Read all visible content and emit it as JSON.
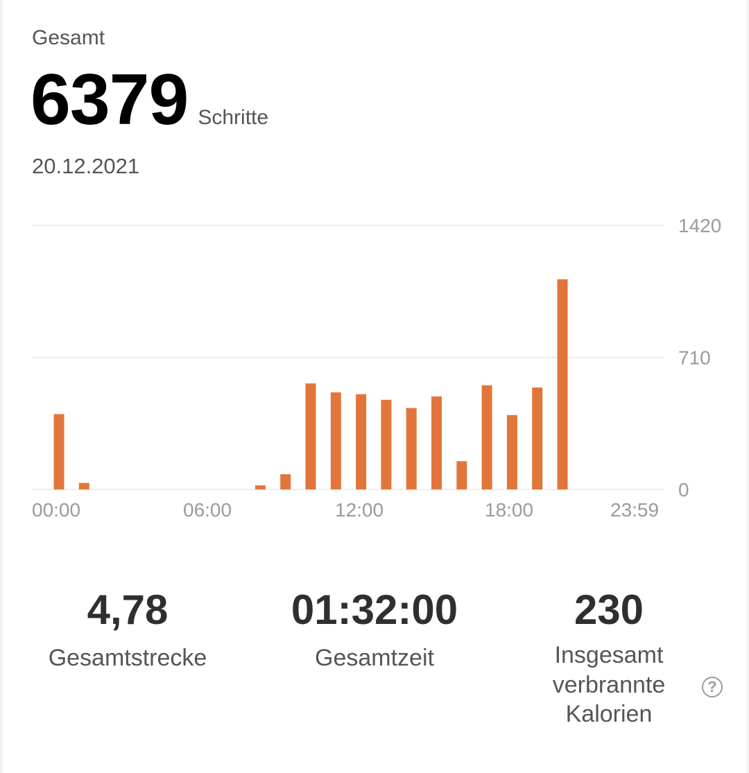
{
  "summary": {
    "label": "Gesamt",
    "steps": "6379",
    "unit": "Schritte",
    "date": "20.12.2021"
  },
  "chart_data": {
    "type": "bar",
    "categories": [
      "00:00",
      "01:00",
      "02:00",
      "03:00",
      "04:00",
      "05:00",
      "06:00",
      "07:00",
      "08:00",
      "09:00",
      "10:00",
      "11:00",
      "12:00",
      "13:00",
      "14:00",
      "15:00",
      "16:00",
      "17:00",
      "18:00",
      "19:00",
      "20:00",
      "21:00",
      "22:00",
      "23:00"
    ],
    "values": [
      405,
      35,
      0,
      0,
      0,
      0,
      0,
      0,
      22,
      82,
      570,
      522,
      512,
      482,
      438,
      500,
      152,
      560,
      400,
      548,
      1130,
      0,
      0,
      0
    ],
    "ylim": [
      0,
      1420
    ],
    "yticks": [
      "0",
      "710",
      "1420"
    ],
    "xticks": [
      "00:00",
      "06:00",
      "12:00",
      "18:00",
      "23:59"
    ],
    "grid": true,
    "color": "#e2763a"
  },
  "stats": {
    "distance": {
      "value": "4,78",
      "label": "Gesamtstrecke"
    },
    "time": {
      "value": "01:32:00",
      "label": "Gesamtzeit"
    },
    "calories": {
      "value": "230",
      "label_lines": [
        "Insgesamt",
        "verbrannte",
        "Kalorien"
      ]
    }
  },
  "icons": {
    "help": "help-circle-icon"
  },
  "colors": {
    "accent": "#e2763a",
    "grid": "#e8e8e8",
    "axis_text": "#9a9a9a"
  }
}
